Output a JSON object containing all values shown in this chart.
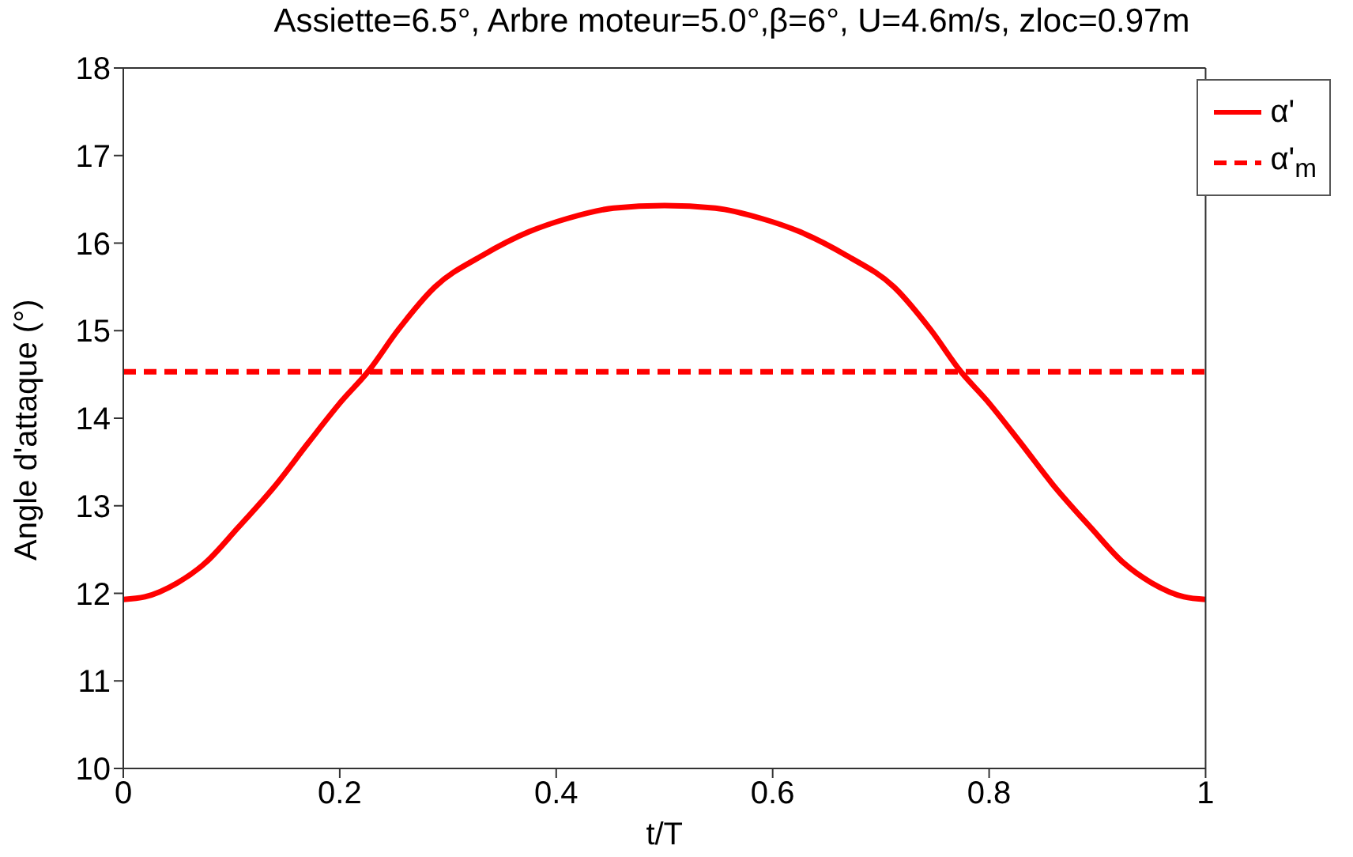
{
  "chart_data": {
    "type": "line",
    "title": "Assiette=6.5°, Arbre moteur=5.0°,β=6°, U=4.6m/s, zloc=0.97m",
    "xlabel": "t/T",
    "ylabel": "Angle d'attaque (°)",
    "x": [
      0,
      0.02,
      0.05,
      0.076,
      0.106,
      0.141,
      0.171,
      0.202,
      0.226,
      0.254,
      0.288,
      0.332,
      0.375,
      0.41,
      0.453,
      0.5,
      0.547,
      0.59,
      0.625,
      0.668,
      0.712,
      0.746,
      0.774,
      0.798,
      0.829,
      0.859,
      0.894,
      0.924,
      0.95,
      0.98,
      1
    ],
    "series": [
      {
        "name": "α'",
        "color": "#ff0000",
        "line_style": "solid",
        "values": [
          11.93,
          11.96,
          12.12,
          12.35,
          12.75,
          13.24,
          13.72,
          14.2,
          14.53,
          15.01,
          15.5,
          15.86,
          16.13,
          16.28,
          16.4,
          16.43,
          16.4,
          16.28,
          16.13,
          15.86,
          15.5,
          15.01,
          14.53,
          14.2,
          13.72,
          13.24,
          12.75,
          12.35,
          12.12,
          11.96,
          11.93
        ]
      },
      {
        "name": "α'$_{m}$",
        "color": "#ff0000",
        "line_style": "dashed",
        "x": [
          0,
          1
        ],
        "values": [
          14.53,
          14.53
        ]
      }
    ],
    "xlim": [
      0,
      1
    ],
    "xticks": [
      0,
      0.2,
      0.4,
      0.6,
      0.8,
      1
    ],
    "ylim": [
      10,
      18
    ],
    "yticks": [
      10,
      11,
      12,
      13,
      14,
      15,
      16,
      17,
      18
    ],
    "grid": false,
    "legend": "top right",
    "marker": "none"
  }
}
